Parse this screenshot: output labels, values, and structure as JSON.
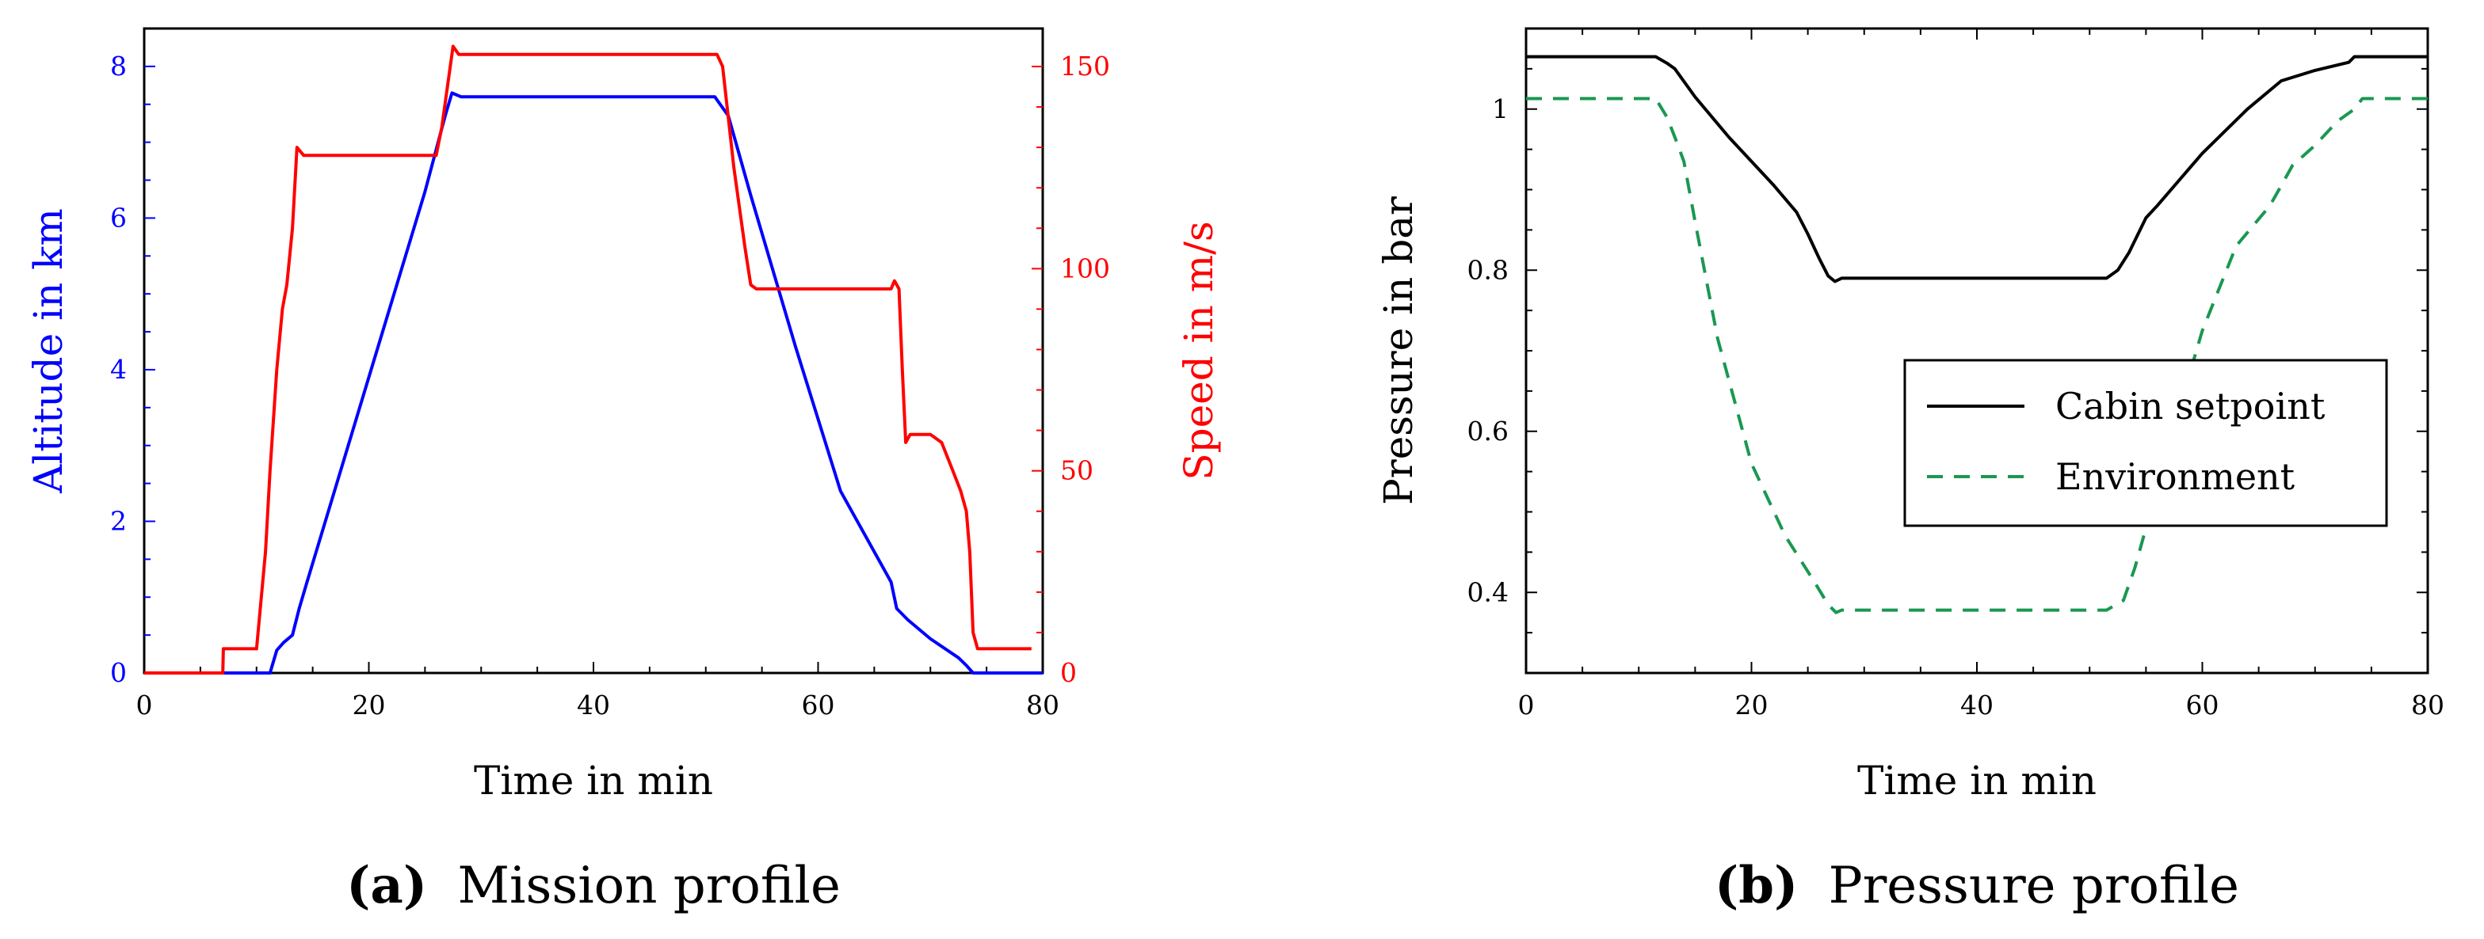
{
  "chart_data": [
    {
      "id": "a",
      "type": "line",
      "caption_tag": "(a)",
      "caption_text": "Mission profile",
      "xlabel": "Time in min",
      "xlim": [
        0,
        80
      ],
      "x_ticks": [
        0,
        20,
        40,
        60,
        80
      ],
      "ylabel_left": "Altitude in km",
      "ylim_left": [
        0,
        8.5
      ],
      "y_ticks_left": [
        0,
        2,
        4,
        6,
        8
      ],
      "ylabel_right": "Speed in m/s",
      "ylim_right": [
        0,
        159.4
      ],
      "y_ticks_right": [
        0,
        50,
        100,
        150
      ],
      "series": [
        {
          "name": "Altitude",
          "axis": "left",
          "color": "#0000ff",
          "x": [
            0,
            11.2,
            11.8,
            12.4,
            13.2,
            13.8,
            14.5,
            20,
            25,
            26.8,
            27.4,
            28.2,
            40,
            50.8,
            52,
            54,
            58,
            62,
            66.5,
            67,
            68,
            70,
            72.5,
            73.2,
            73.8,
            80
          ],
          "y": [
            0,
            0,
            0.3,
            0.4,
            0.5,
            0.85,
            1.2,
            3.9,
            6.35,
            7.35,
            7.65,
            7.6,
            7.6,
            7.6,
            7.35,
            6.3,
            4.3,
            2.4,
            1.2,
            0.85,
            0.7,
            0.45,
            0.2,
            0.1,
            0,
            0
          ],
          "x_max_plotted": 74
        },
        {
          "name": "Speed",
          "axis": "right",
          "color": "#ff0000",
          "x": [
            0,
            7,
            7.05,
            10,
            10.8,
            11.2,
            11.8,
            12.3,
            12.7,
            13.2,
            13.6,
            14.2,
            14.6,
            26,
            26.5,
            27,
            27.5,
            28,
            28.5,
            51,
            51.5,
            52.5,
            53.5,
            54,
            54.5,
            66.5,
            66.8,
            67.2,
            67.5,
            67.8,
            68.2,
            70,
            71,
            72,
            72.7,
            73.2,
            73.5,
            73.8,
            74.2,
            79
          ],
          "y": [
            0,
            0,
            6,
            6,
            30,
            50,
            75,
            90,
            96,
            110,
            130,
            128,
            128,
            128,
            135,
            145,
            155,
            153,
            153,
            153,
            150,
            125,
            105,
            96,
            95,
            95,
            97,
            95,
            75,
            57,
            59,
            59,
            57,
            50,
            45,
            40,
            30,
            10,
            6,
            6
          ]
        }
      ]
    },
    {
      "id": "b",
      "type": "line",
      "caption_tag": "(b)",
      "caption_text": "Pressure profile",
      "xlabel": "Time in min",
      "xlim": [
        0,
        80
      ],
      "x_ticks": [
        0,
        20,
        40,
        60,
        80
      ],
      "ylabel": "Pressure in bar",
      "ylim": [
        0.3,
        1.1
      ],
      "y_ticks": [
        0.4,
        0.6,
        0.8,
        1
      ],
      "y_tick_labels": [
        "0.4",
        "0.6",
        "0.8",
        "1"
      ],
      "legend_position": "right-center",
      "series": [
        {
          "name": "Cabin setpoint",
          "style": "solid",
          "color": "#000000",
          "x": [
            0,
            11.5,
            12.5,
            13.2,
            15,
            18,
            22,
            24,
            25,
            26,
            26.8,
            27.4,
            28,
            28.5,
            40,
            51.5,
            52.5,
            53.5,
            55,
            56,
            60,
            64,
            67,
            70,
            73,
            73.5,
            74,
            80
          ],
          "y": [
            1.065,
            1.065,
            1.057,
            1.05,
            1.015,
            0.965,
            0.905,
            0.872,
            0.845,
            0.815,
            0.793,
            0.786,
            0.79,
            0.79,
            0.79,
            0.79,
            0.8,
            0.822,
            0.865,
            0.88,
            0.945,
            1.0,
            1.035,
            1.048,
            1.058,
            1.065,
            1.065,
            1.065
          ]
        },
        {
          "name": "Environment",
          "style": "dashed",
          "color": "#1a9850",
          "x": [
            0,
            11.5,
            12.5,
            13.4,
            14,
            15,
            17,
            20,
            23,
            25.5,
            26.8,
            27.5,
            28,
            28.5,
            40,
            51.5,
            53,
            54,
            56,
            58,
            60,
            63,
            66,
            67,
            68,
            70,
            72,
            73.5,
            74.2,
            80
          ],
          "y": [
            1.013,
            1.013,
            0.99,
            0.958,
            0.935,
            0.86,
            0.715,
            0.56,
            0.47,
            0.415,
            0.385,
            0.375,
            0.378,
            0.378,
            0.378,
            0.378,
            0.39,
            0.43,
            0.53,
            0.63,
            0.725,
            0.83,
            0.88,
            0.905,
            0.93,
            0.955,
            0.985,
            1.0,
            1.013,
            1.013
          ]
        }
      ]
    }
  ]
}
